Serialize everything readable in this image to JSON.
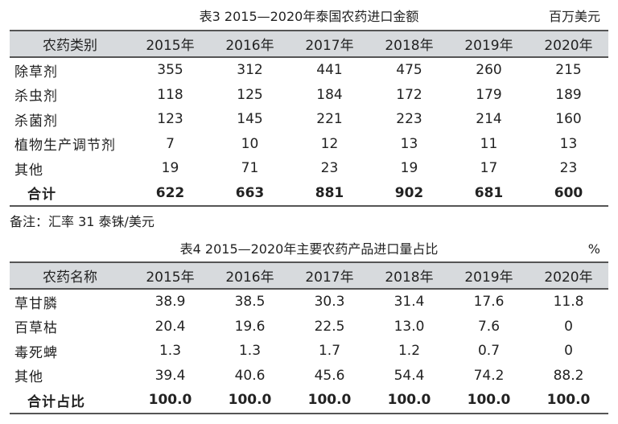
{
  "table3": {
    "title": "表3 2015—2020年泰国农药进口金额",
    "unit": "百万美元",
    "columns": [
      "农药类别",
      "2015年",
      "2016年",
      "2017年",
      "2018年",
      "2019年",
      "2020年"
    ],
    "rows": [
      [
        "除草剂",
        "355",
        "312",
        "441",
        "475",
        "260",
        "215"
      ],
      [
        "杀虫剂",
        "118",
        "125",
        "184",
        "172",
        "179",
        "189"
      ],
      [
        "杀菌剂",
        "123",
        "145",
        "221",
        "223",
        "214",
        "160"
      ],
      [
        "植物生产调节剂",
        "7",
        "10",
        "12",
        "13",
        "11",
        "13"
      ],
      [
        "其他",
        "19",
        "71",
        "23",
        "19",
        "17",
        "23"
      ],
      [
        "合计",
        "622",
        "663",
        "881",
        "902",
        "681",
        "600"
      ]
    ]
  },
  "note": "备注：汇率 31 泰铢/美元",
  "table4": {
    "title": "表4 2015—2020年主要农药产品进口量占比",
    "unit": "%",
    "columns": [
      "农药名称",
      "2015年",
      "2016年",
      "2017年",
      "2018年",
      "2019年",
      "2020年"
    ],
    "rows": [
      [
        "草甘膦",
        "38.9",
        "38.5",
        "30.3",
        "31.4",
        "17.6",
        "11.8"
      ],
      [
        "百草枯",
        "20.4",
        "19.6",
        "22.5",
        "13.0",
        "7.6",
        "0"
      ],
      [
        "毒死蜱",
        "1.3",
        "1.3",
        "1.7",
        "1.2",
        "0.7",
        "0"
      ],
      [
        "其他",
        "39.4",
        "40.6",
        "45.6",
        "54.4",
        "74.2",
        "88.2"
      ],
      [
        "合计占比",
        "100.0",
        "100.0",
        "100.0",
        "100.0",
        "100.0",
        "100.0"
      ]
    ]
  }
}
